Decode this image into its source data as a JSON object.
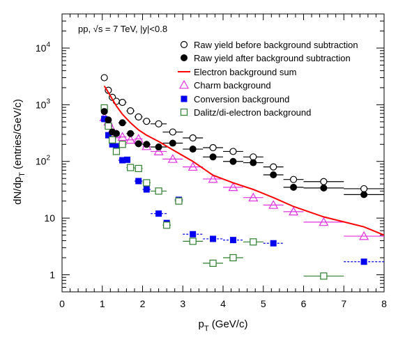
{
  "chart_data": {
    "type": "scatter",
    "title": "",
    "annotation": "pp, √s = 7 TeV, |y|<0.8",
    "xlabel": "p_T (GeV/c)",
    "ylabel": "dN/dp_T (entries/GeV/c)",
    "xlim": [
      0,
      8
    ],
    "ylim": [
      0.5,
      40000
    ],
    "yscale": "log",
    "grid": false,
    "legend_position": "top-right",
    "x_ticks": [
      "0",
      "1",
      "2",
      "3",
      "4",
      "5",
      "6",
      "7",
      "8"
    ],
    "y_ticks": [
      {
        "base": "1",
        "exp": ""
      },
      {
        "base": "10",
        "exp": ""
      },
      {
        "base": "10",
        "exp": "2"
      },
      {
        "base": "10",
        "exp": "3"
      },
      {
        "base": "10",
        "exp": "4"
      }
    ],
    "series": [
      {
        "name": "Raw yield before background subtraction",
        "marker": "open-circle",
        "color": "#000000",
        "points": [
          {
            "x": 1.05,
            "y": 3000,
            "xerr": 0.05
          },
          {
            "x": 1.15,
            "y": 1800,
            "xerr": 0.05
          },
          {
            "x": 1.25,
            "y": 1350,
            "xerr": 0.05
          },
          {
            "x": 1.35,
            "y": 1150,
            "xerr": 0.05
          },
          {
            "x": 1.5,
            "y": 1100,
            "xerr": 0.1
          },
          {
            "x": 1.7,
            "y": 780,
            "xerr": 0.1
          },
          {
            "x": 1.9,
            "y": 610,
            "xerr": 0.1
          },
          {
            "x": 2.1,
            "y": 510,
            "xerr": 0.1
          },
          {
            "x": 2.4,
            "y": 460,
            "xerr": 0.2
          },
          {
            "x": 2.75,
            "y": 330,
            "xerr": 0.25
          },
          {
            "x": 3.25,
            "y": 260,
            "xerr": 0.25
          },
          {
            "x": 3.75,
            "y": 175,
            "xerr": 0.25
          },
          {
            "x": 4.25,
            "y": 150,
            "xerr": 0.25
          },
          {
            "x": 4.75,
            "y": 120,
            "xerr": 0.25
          },
          {
            "x": 5.25,
            "y": 80,
            "xerr": 0.25
          },
          {
            "x": 5.75,
            "y": 48,
            "xerr": 0.25
          },
          {
            "x": 6.5,
            "y": 44,
            "xerr": 0.5
          },
          {
            "x": 7.5,
            "y": 33,
            "xerr": 0.5
          }
        ]
      },
      {
        "name": "Raw yield after background subtraction",
        "marker": "filled-circle",
        "color": "#000000",
        "points": [
          {
            "x": 1.05,
            "y": 760,
            "xerr": 0.05
          },
          {
            "x": 1.15,
            "y": 540,
            "xerr": 0.05
          },
          {
            "x": 1.25,
            "y": 330,
            "xerr": 0.05
          },
          {
            "x": 1.35,
            "y": 310,
            "xerr": 0.05
          },
          {
            "x": 1.5,
            "y": 480,
            "xerr": 0.1
          },
          {
            "x": 1.7,
            "y": 310,
            "xerr": 0.1
          },
          {
            "x": 1.9,
            "y": 205,
            "xerr": 0.1
          },
          {
            "x": 2.1,
            "y": 200,
            "xerr": 0.1
          },
          {
            "x": 2.4,
            "y": 180,
            "xerr": 0.2
          },
          {
            "x": 2.75,
            "y": 210,
            "xerr": 0.25
          },
          {
            "x": 3.25,
            "y": 165,
            "xerr": 0.25
          },
          {
            "x": 3.75,
            "y": 120,
            "xerr": 0.25
          },
          {
            "x": 4.25,
            "y": 100,
            "xerr": 0.25
          },
          {
            "x": 4.75,
            "y": 95,
            "xerr": 0.25
          },
          {
            "x": 5.25,
            "y": 58,
            "xerr": 0.25
          },
          {
            "x": 5.75,
            "y": 35,
            "xerr": 0.25
          },
          {
            "x": 6.5,
            "y": 34,
            "xerr": 0.5
          },
          {
            "x": 7.5,
            "y": 26,
            "xerr": 0.5
          }
        ]
      },
      {
        "name": "Electron background sum",
        "marker": "line",
        "color": "#ff0000",
        "points": [
          {
            "x": 1.05,
            "y": 2150
          },
          {
            "x": 1.15,
            "y": 1650
          },
          {
            "x": 1.25,
            "y": 1250
          },
          {
            "x": 1.35,
            "y": 950
          },
          {
            "x": 1.5,
            "y": 680
          },
          {
            "x": 1.7,
            "y": 480
          },
          {
            "x": 1.9,
            "y": 360
          },
          {
            "x": 2.1,
            "y": 290
          },
          {
            "x": 2.4,
            "y": 225
          },
          {
            "x": 2.75,
            "y": 160
          },
          {
            "x": 3.25,
            "y": 100
          },
          {
            "x": 3.75,
            "y": 57
          },
          {
            "x": 4.25,
            "y": 42
          },
          {
            "x": 4.75,
            "y": 32
          },
          {
            "x": 5.25,
            "y": 23
          },
          {
            "x": 5.75,
            "y": 16
          },
          {
            "x": 6.5,
            "y": 10.5
          },
          {
            "x": 7.5,
            "y": 7
          },
          {
            "x": 8.0,
            "y": 5
          }
        ]
      },
      {
        "name": "Charm background",
        "marker": "open-triangle",
        "color": "#e030e0",
        "points": [
          {
            "x": 1.05,
            "y": 600,
            "xerr": 0.05
          },
          {
            "x": 1.15,
            "y": 500,
            "xerr": 0.05
          },
          {
            "x": 1.25,
            "y": 360,
            "xerr": 0.05
          },
          {
            "x": 1.35,
            "y": 300,
            "xerr": 0.05
          },
          {
            "x": 1.5,
            "y": 270,
            "xerr": 0.1
          },
          {
            "x": 1.7,
            "y": 240,
            "xerr": 0.1
          },
          {
            "x": 1.9,
            "y": 250,
            "xerr": 0.1
          },
          {
            "x": 2.1,
            "y": 185,
            "xerr": 0.1
          },
          {
            "x": 2.4,
            "y": 150,
            "xerr": 0.2
          },
          {
            "x": 2.75,
            "y": 110,
            "xerr": 0.25
          },
          {
            "x": 3.25,
            "y": 80,
            "xerr": 0.25
          },
          {
            "x": 3.75,
            "y": 49,
            "xerr": 0.25
          },
          {
            "x": 4.25,
            "y": 35,
            "xerr": 0.25
          },
          {
            "x": 4.75,
            "y": 23,
            "xerr": 0.25
          },
          {
            "x": 5.25,
            "y": 17,
            "xerr": 0.25
          },
          {
            "x": 5.75,
            "y": 13,
            "xerr": 0.25
          },
          {
            "x": 6.5,
            "y": 8.5,
            "xerr": 0.5
          },
          {
            "x": 7.5,
            "y": 4.8,
            "xerr": 0.5
          }
        ]
      },
      {
        "name": "Conversion background",
        "marker": "filled-square",
        "color": "#0000ee",
        "points": [
          {
            "x": 1.05,
            "y": 560,
            "xerr": 0.05
          },
          {
            "x": 1.15,
            "y": 290,
            "xerr": 0.05
          },
          {
            "x": 1.25,
            "y": 200,
            "xerr": 0.05
          },
          {
            "x": 1.35,
            "y": 185,
            "xerr": 0.05
          },
          {
            "x": 1.5,
            "y": 105,
            "xerr": 0.1
          },
          {
            "x": 1.62,
            "y": 107,
            "xerr": 0.04
          },
          {
            "x": 1.9,
            "y": 45,
            "xerr": 0.1
          },
          {
            "x": 2.1,
            "y": 32,
            "xerr": 0.1
          },
          {
            "x": 2.4,
            "y": 12,
            "xerr": 0.2
          },
          {
            "x": 2.6,
            "y": 8.2,
            "xerr": 0.05
          },
          {
            "x": 2.9,
            "y": 21,
            "xerr": 0.1
          },
          {
            "x": 3.25,
            "y": 5.2,
            "xerr": 0.25
          },
          {
            "x": 3.75,
            "y": 4.3,
            "xerr": 0.25
          },
          {
            "x": 4.25,
            "y": 4.1,
            "xerr": 0.25
          },
          {
            "x": 5.25,
            "y": 3.6,
            "xerr": 0.25
          },
          {
            "x": 7.5,
            "y": 1.7,
            "xerr": 0.5
          }
        ]
      },
      {
        "name": "Dalitz/di-electron background",
        "marker": "open-square",
        "color": "#2e7d2e",
        "points": [
          {
            "x": 1.05,
            "y": 880,
            "xerr": 0.05
          },
          {
            "x": 1.15,
            "y": 420,
            "xerr": 0.05
          },
          {
            "x": 1.25,
            "y": 240,
            "xerr": 0.05
          },
          {
            "x": 1.35,
            "y": 150,
            "xerr": 0.05
          },
          {
            "x": 1.5,
            "y": 200,
            "xerr": 0.1
          },
          {
            "x": 1.7,
            "y": 78,
            "xerr": 0.1
          },
          {
            "x": 1.9,
            "y": 75,
            "xerr": 0.1
          },
          {
            "x": 2.1,
            "y": 42,
            "xerr": 0.1
          },
          {
            "x": 2.4,
            "y": 30,
            "xerr": 0.2
          },
          {
            "x": 2.6,
            "y": 7.5,
            "xerr": 0.1
          },
          {
            "x": 2.9,
            "y": 20,
            "xerr": 0.1
          },
          {
            "x": 3.25,
            "y": 3.9,
            "xerr": 0.25
          },
          {
            "x": 3.75,
            "y": 1.6,
            "xerr": 0.25
          },
          {
            "x": 4.25,
            "y": 2.0,
            "xerr": 0.25
          },
          {
            "x": 4.75,
            "y": 3.8,
            "xerr": 0.25
          },
          {
            "x": 6.5,
            "y": 0.95,
            "xerr": 0.5
          }
        ]
      }
    ]
  }
}
